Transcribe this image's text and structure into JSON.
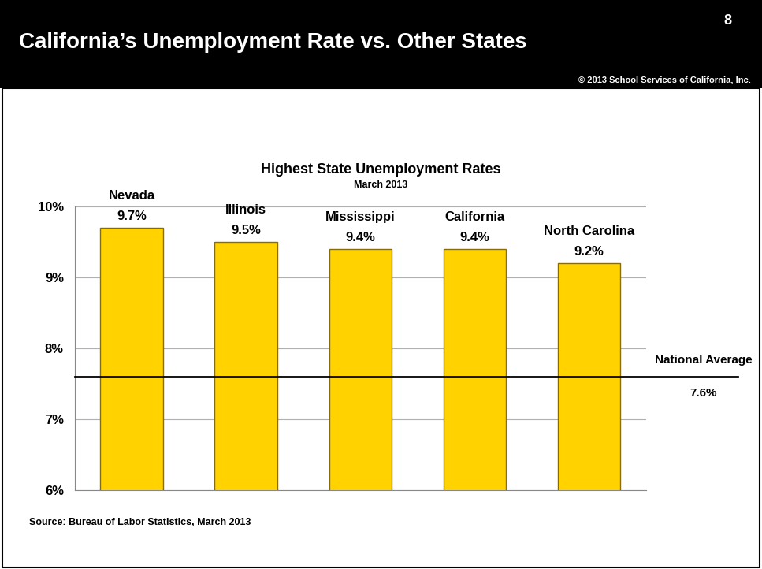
{
  "slide": {
    "header": "California’s Unemployment Rate vs. Other States",
    "page": "8",
    "copyright": "© 2013 School Services of California, Inc.",
    "source": "Source: Bureau of Labor Statistics, March 2013"
  },
  "chart_data": {
    "type": "bar",
    "title": "Highest State Unemployment Rates",
    "subtitle": "March 2013",
    "categories": [
      "Nevada",
      "Illinois",
      "Mississippi",
      "California",
      "North Carolina"
    ],
    "values": [
      9.7,
      9.5,
      9.4,
      9.4,
      9.2
    ],
    "value_labels": [
      "9.7%",
      "9.5%",
      "9.4%",
      "9.4%",
      "9.2%"
    ],
    "color": "#ffd200",
    "ylim": [
      6,
      10
    ],
    "yticks": [
      {
        "value": 6,
        "label": "6%"
      },
      {
        "value": 7,
        "label": "7%"
      },
      {
        "value": 8,
        "label": "8%"
      },
      {
        "value": 9,
        "label": "9%"
      },
      {
        "value": 10,
        "label": "10%"
      }
    ],
    "grid": true,
    "data_labels": true,
    "tick_labels": "y",
    "reference_line": {
      "label": "National Average",
      "value": 7.6,
      "value_label": "7.6%"
    }
  }
}
